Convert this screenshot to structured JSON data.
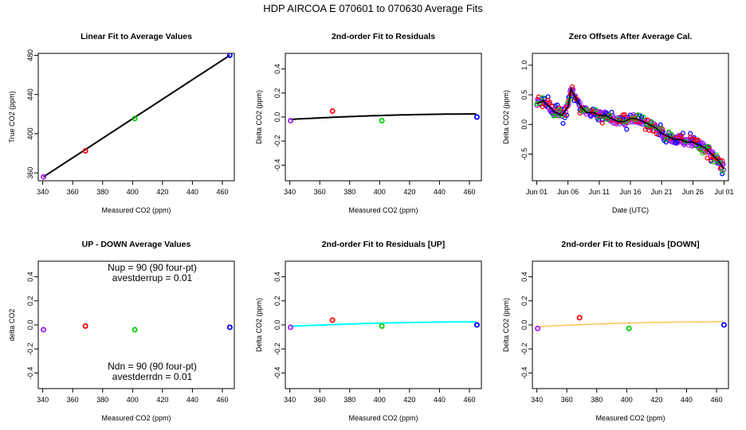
{
  "figure": {
    "suptitle": "HDP   AIRCOA E   070601 to 070630   Average Fits"
  },
  "colors": {
    "purple": "#a020f0",
    "red": "#ff0000",
    "green": "#00cc00",
    "blue": "#0000ff",
    "black": "#000000",
    "cyan": "#00ffff",
    "orange": "#ffa500"
  },
  "chart_data": [
    {
      "id": "linear-fit",
      "type": "scatter",
      "title": "Linear Fit to Average Values",
      "xlabel": "Measured CO2 (ppm)",
      "ylabel": "True CO2 (ppm)",
      "xlim": [
        337,
        468
      ],
      "ylim": [
        352,
        482
      ],
      "xticks": [
        340,
        360,
        380,
        400,
        420,
        440,
        460
      ],
      "yticks": [
        360,
        400,
        440,
        480
      ],
      "points": [
        {
          "x": 340.5,
          "y": 356.0,
          "color": "purple"
        },
        {
          "x": 368.5,
          "y": 382.5,
          "color": "red"
        },
        {
          "x": 401.5,
          "y": 415.5,
          "color": "green"
        },
        {
          "x": 465.0,
          "y": 480.0,
          "color": "blue"
        }
      ],
      "fit_line": {
        "color": "black",
        "x": [
          340.5,
          465.0
        ],
        "y": [
          356.0,
          480.0
        ]
      }
    },
    {
      "id": "residuals-2nd",
      "type": "scatter",
      "title": "2nd-order Fit to Residuals",
      "xlabel": "Measured CO2 (ppm)",
      "ylabel": "Delta CO2 (ppm)",
      "xlim": [
        337,
        468
      ],
      "ylim": [
        -0.53,
        0.53
      ],
      "xticks": [
        340,
        360,
        380,
        400,
        420,
        440,
        460
      ],
      "yticks": [
        -0.4,
        -0.2,
        0.0,
        0.2,
        0.4
      ],
      "points": [
        {
          "x": 340.5,
          "y": -0.03,
          "color": "purple"
        },
        {
          "x": 368.5,
          "y": 0.05,
          "color": "red"
        },
        {
          "x": 401.5,
          "y": -0.03,
          "color": "green"
        },
        {
          "x": 465.0,
          "y": 0.0,
          "color": "blue"
        }
      ],
      "fit_curve": {
        "color": "black",
        "coef": [
          -0.02,
          0.000706,
          -2.7e-06
        ]
      }
    },
    {
      "id": "zero-offsets",
      "type": "scatter",
      "title": "Zero Offsets After Average Cal.",
      "xlabel": "Date (UTC)",
      "ylabel": "Delta CO2 (ppm)",
      "xlim": [
        -0.7,
        30.7
      ],
      "ylim": [
        -0.95,
        1.2
      ],
      "xticks": [
        0,
        5,
        10,
        15,
        20,
        25,
        30
      ],
      "xticklabels": [
        "Jun 01",
        "Jun 06",
        "Jun 11",
        "Jun 16",
        "Jun 21",
        "Jun 26",
        "Jul 01"
      ],
      "yticks": [
        -0.5,
        0.0,
        0.5,
        1.0
      ],
      "series": [
        {
          "color": "purple",
          "noise": 0.07,
          "offset": 0.0,
          "every": 0.09,
          "sparse": false
        },
        {
          "color": "blue",
          "noise": 0.14,
          "offset": 0.08,
          "every": 0.3,
          "sparse": true
        },
        {
          "color": "red",
          "noise": 0.12,
          "offset": -0.05,
          "every": 0.3,
          "sparse": true
        },
        {
          "color": "green",
          "noise": 0.1,
          "offset": 0.05,
          "every": 0.45,
          "sparse": true
        }
      ],
      "trend": {
        "color": "black",
        "x": [
          0,
          1,
          2,
          3,
          4,
          5,
          5.5,
          6,
          7,
          8,
          9,
          10,
          11,
          12,
          13,
          14,
          15,
          16,
          17,
          18,
          19,
          20,
          21,
          22,
          23,
          24,
          25,
          26,
          27,
          28,
          29,
          30
        ],
        "y": [
          0.35,
          0.4,
          0.3,
          0.2,
          0.15,
          0.3,
          0.6,
          0.5,
          0.3,
          0.2,
          0.2,
          0.15,
          0.15,
          0.1,
          0.05,
          0.05,
          0.1,
          0.1,
          0.05,
          0.0,
          -0.05,
          -0.15,
          -0.2,
          -0.25,
          -0.25,
          -0.3,
          -0.3,
          -0.35,
          -0.4,
          -0.5,
          -0.6,
          -0.75
        ]
      }
    },
    {
      "id": "up-down",
      "type": "scatter",
      "title": "UP - DOWN Average Values",
      "xlabel": "Measured CO2 (ppm)",
      "ylabel": "delta CO2",
      "xlim": [
        337,
        468
      ],
      "ylim": [
        -0.53,
        0.53
      ],
      "xticks": [
        340,
        360,
        380,
        400,
        420,
        440,
        460
      ],
      "yticks": [
        -0.4,
        -0.2,
        0.0,
        0.2,
        0.4
      ],
      "points": [
        {
          "x": 340.5,
          "y": -0.04,
          "color": "purple"
        },
        {
          "x": 368.5,
          "y": -0.01,
          "color": "red"
        },
        {
          "x": 401.5,
          "y": -0.04,
          "color": "green"
        },
        {
          "x": 465.0,
          "y": -0.02,
          "color": "blue"
        }
      ],
      "annotations": {
        "nup": "Nup = 90 (90 four-pt)",
        "avestderrup": "avestderrup =  0.01",
        "ndn": "Ndn = 90 (90 four-pt)",
        "avestderrdn": "avestderrdn =  0.01"
      }
    },
    {
      "id": "residuals-up",
      "type": "scatter",
      "title": "2nd-order Fit to Residuals [UP]",
      "xlabel": "Measured CO2 (ppm)",
      "ylabel": "Delta CO2 (ppm)",
      "xlim": [
        337,
        468
      ],
      "ylim": [
        -0.53,
        0.53
      ],
      "xticks": [
        340,
        360,
        380,
        400,
        420,
        440,
        460
      ],
      "yticks": [
        -0.4,
        -0.2,
        0.0,
        0.2,
        0.4
      ],
      "points": [
        {
          "x": 340.5,
          "y": -0.02,
          "color": "purple"
        },
        {
          "x": 368.5,
          "y": 0.04,
          "color": "red"
        },
        {
          "x": 401.5,
          "y": -0.01,
          "color": "green"
        },
        {
          "x": 465.0,
          "y": 0.0,
          "color": "blue"
        }
      ],
      "fit_curve": {
        "color": "cyan",
        "coef": [
          -0.012,
          0.000573,
          -2.2e-06
        ]
      }
    },
    {
      "id": "residuals-down",
      "type": "scatter",
      "title": "2nd-order Fit to Residuals [DOWN]",
      "xlabel": "Measured CO2 (ppm)",
      "ylabel": "Delta CO2 (ppm)",
      "xlim": [
        337,
        468
      ],
      "ylim": [
        -0.53,
        0.53
      ],
      "xticks": [
        340,
        360,
        380,
        400,
        420,
        440,
        460
      ],
      "yticks": [
        -0.4,
        -0.2,
        0.0,
        0.2,
        0.4
      ],
      "points": [
        {
          "x": 340.5,
          "y": -0.03,
          "color": "purple"
        },
        {
          "x": 368.5,
          "y": 0.06,
          "color": "red"
        },
        {
          "x": 401.5,
          "y": -0.03,
          "color": "green"
        },
        {
          "x": 465.0,
          "y": 0.0,
          "color": "blue"
        }
      ],
      "fit_curve": {
        "color": "orange",
        "coef": [
          -0.015,
          0.000645,
          -2.5e-06
        ]
      }
    }
  ]
}
